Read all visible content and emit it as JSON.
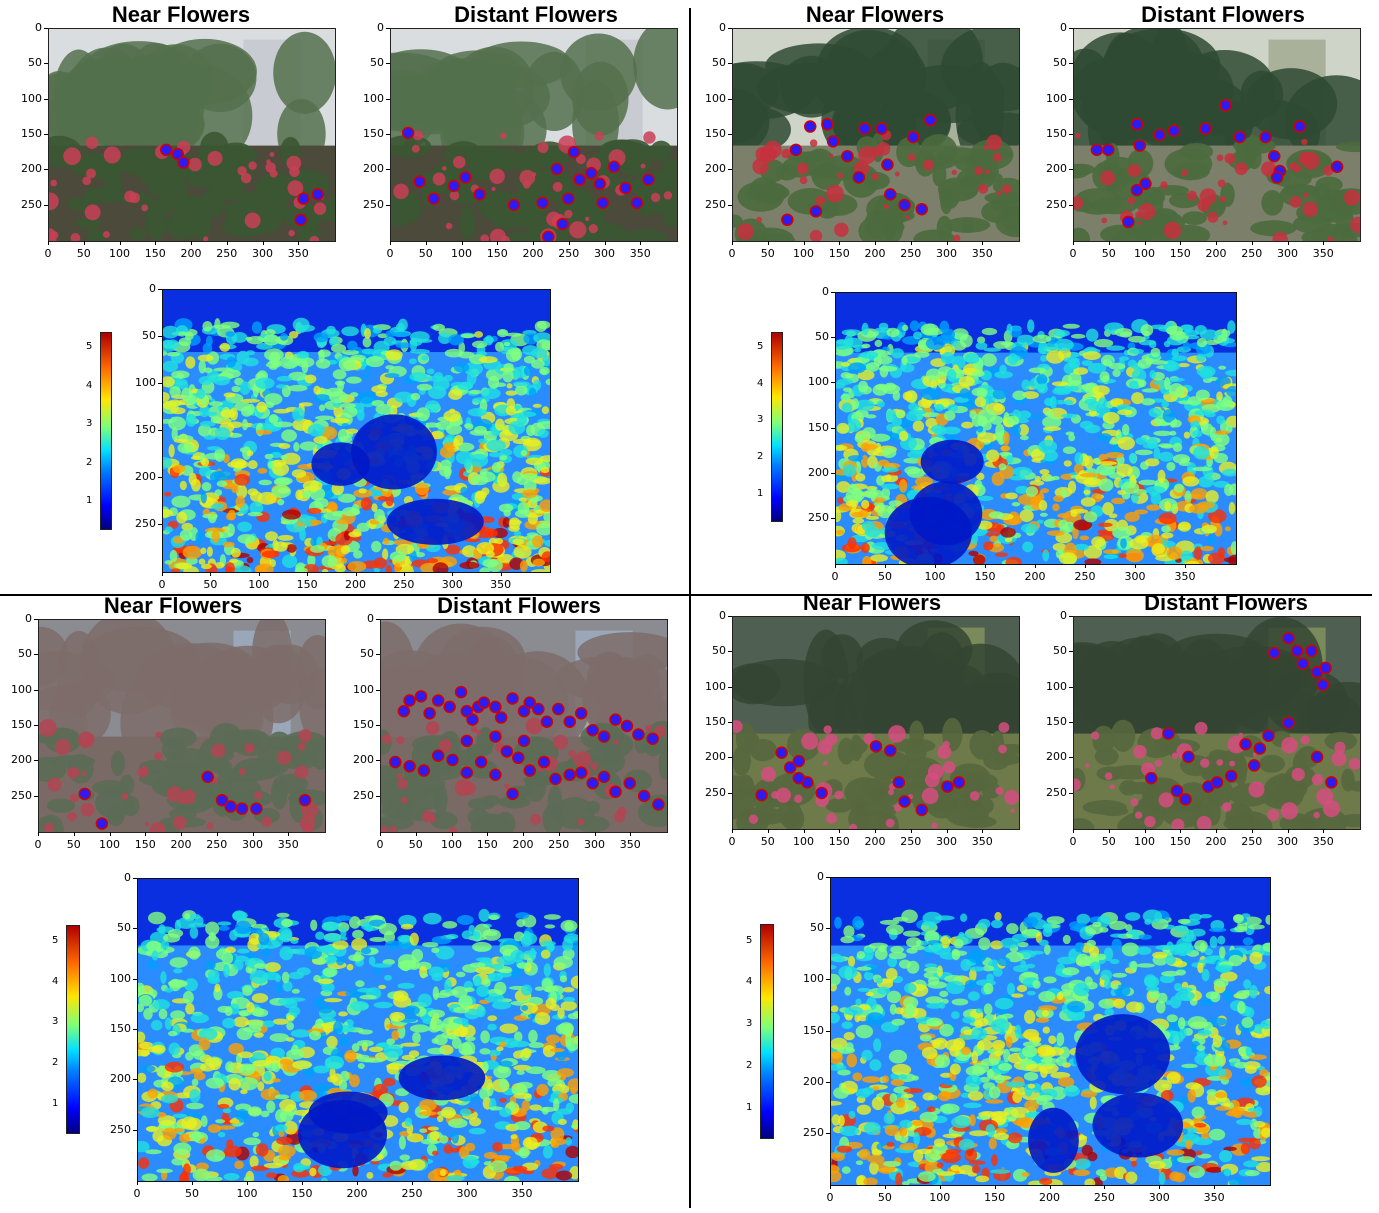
{
  "panels": [
    {
      "near_title": "Near Flowers",
      "distant_title": "Distant Flowers",
      "photo_y_ticks": [
        "0",
        "50",
        "100",
        "150",
        "200",
        "250"
      ],
      "photo_x_ticks": [
        "0",
        "50",
        "100",
        "150",
        "200",
        "250",
        "300",
        "350"
      ],
      "heat_y_ticks": [
        "0",
        "50",
        "100",
        "150",
        "200",
        "250"
      ],
      "heat_x_ticks": [
        "0",
        "50",
        "100",
        "150",
        "200",
        "250",
        "300",
        "350"
      ],
      "colorbar_ticks": [
        "1",
        "2",
        "3",
        "4",
        "5"
      ]
    },
    {
      "near_title": "Near Flowers",
      "distant_title": "Distant Flowers",
      "photo_y_ticks": [
        "0",
        "50",
        "100",
        "150",
        "200",
        "250"
      ],
      "photo_x_ticks": [
        "0",
        "50",
        "100",
        "150",
        "200",
        "250",
        "300",
        "350"
      ],
      "heat_y_ticks": [
        "0",
        "50",
        "100",
        "150",
        "200",
        "250"
      ],
      "heat_x_ticks": [
        "0",
        "50",
        "100",
        "150",
        "200",
        "250",
        "300",
        "350"
      ],
      "colorbar_ticks": [
        "1",
        "2",
        "3",
        "4",
        "5"
      ]
    },
    {
      "near_title": "Near Flowers",
      "distant_title": "Distant Flowers",
      "photo_y_ticks": [
        "0",
        "50",
        "100",
        "150",
        "200",
        "250"
      ],
      "photo_x_ticks": [
        "0",
        "50",
        "100",
        "150",
        "200",
        "250",
        "300",
        "350"
      ],
      "heat_y_ticks": [
        "0",
        "50",
        "100",
        "150",
        "200",
        "250"
      ],
      "heat_x_ticks": [
        "0",
        "50",
        "100",
        "150",
        "200",
        "250",
        "300",
        "350"
      ],
      "colorbar_ticks": [
        "1",
        "2",
        "3",
        "4",
        "5"
      ]
    },
    {
      "near_title": "Near Flowers",
      "distant_title": "Distant Flowers",
      "photo_y_ticks": [
        "0",
        "50",
        "100",
        "150",
        "200",
        "250"
      ],
      "photo_x_ticks": [
        "0",
        "50",
        "100",
        "150",
        "200",
        "250",
        "300",
        "350"
      ],
      "heat_y_ticks": [
        "0",
        "50",
        "100",
        "150",
        "200",
        "250"
      ],
      "heat_x_ticks": [
        "0",
        "50",
        "100",
        "150",
        "200",
        "250",
        "300",
        "350"
      ],
      "colorbar_ticks": [
        "1",
        "2",
        "3",
        "4",
        "5"
      ]
    }
  ],
  "colors": {
    "marker": "#2a1cf2",
    "marker_outline": "#d40000",
    "foliage": "#3c5a32",
    "sky": "#d8dde2",
    "heat_low": "#0000ff",
    "heat_high": "#b00000"
  }
}
